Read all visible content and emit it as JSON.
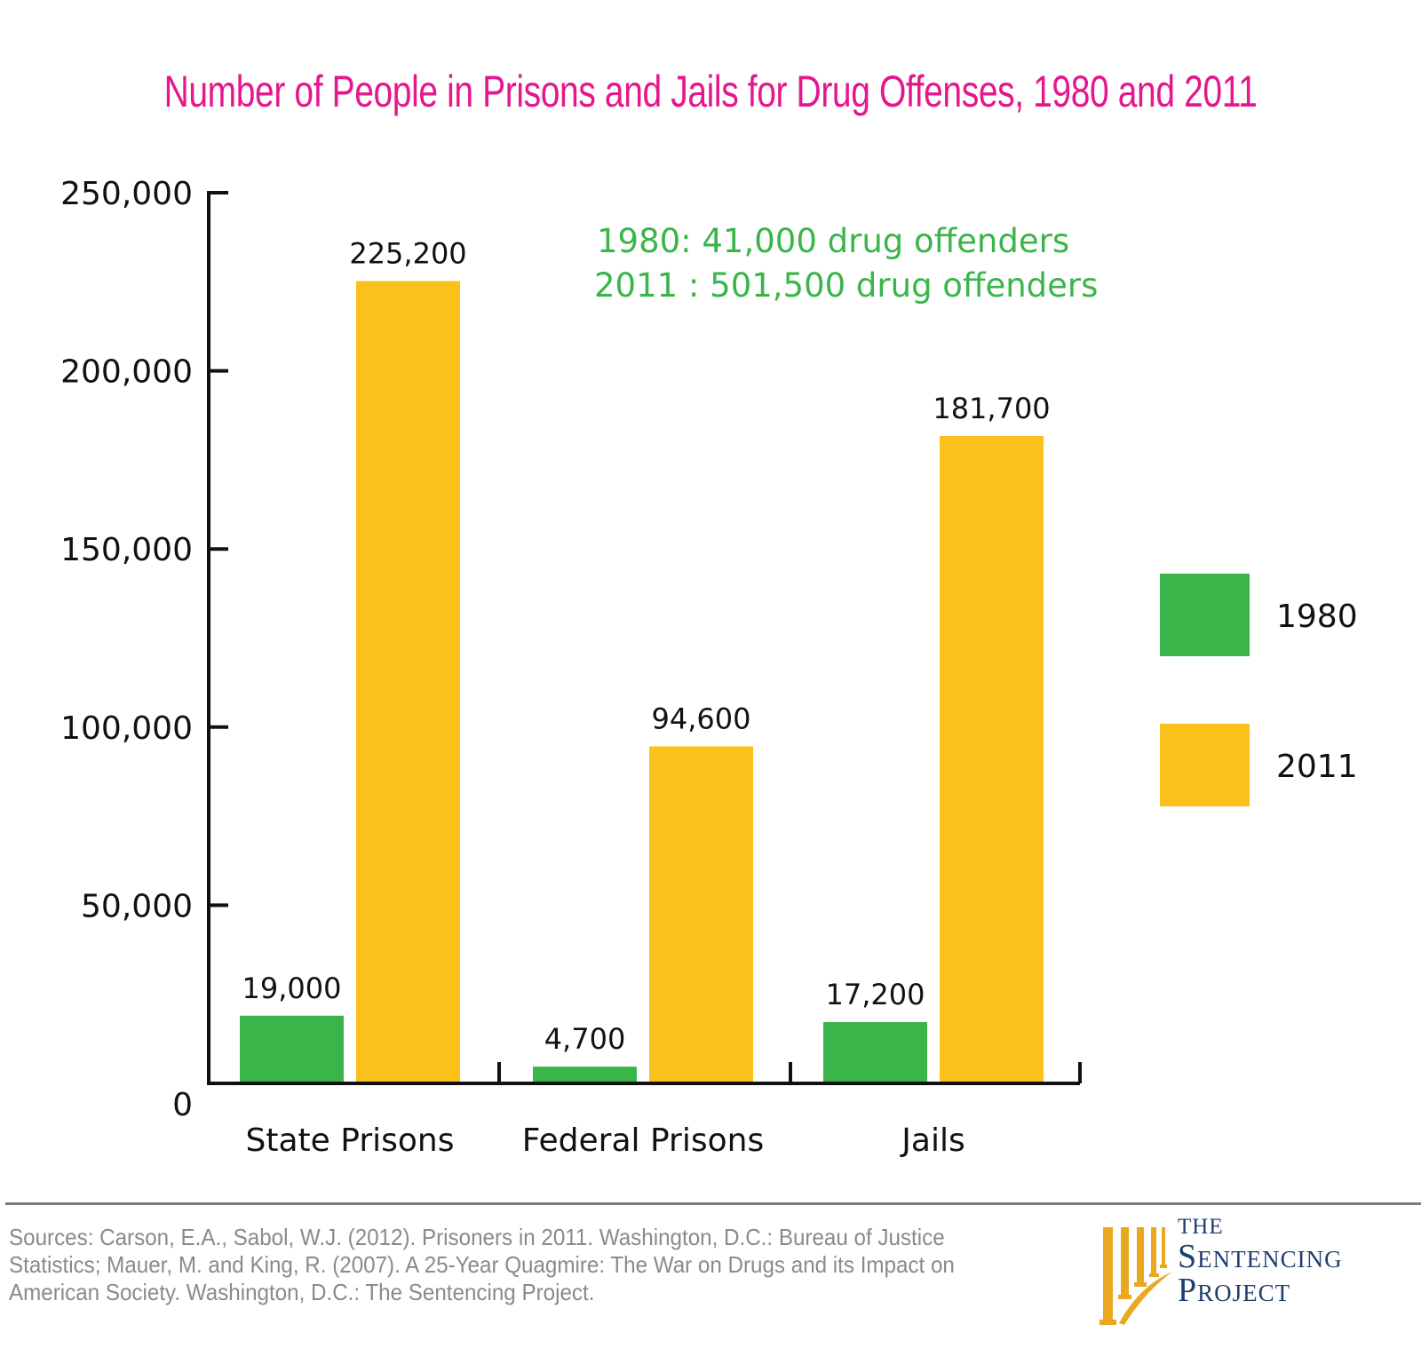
{
  "colors": {
    "title": "#e6168c",
    "series_1980": "#3ab54a",
    "series_2011": "#fbc11b",
    "annotation": "#3ab54a",
    "axis": "#111111",
    "sources_text": "#8a8a8c",
    "logo_gold": "#e9a820",
    "logo_navy": "#1d3f6e"
  },
  "chart_data": {
    "type": "bar",
    "title": "Number of People in Prisons and Jails for Drug Offenses, 1980 and 2011",
    "xlabel": "",
    "ylabel": "",
    "categories": [
      "State Prisons",
      "Federal Prisons",
      "Jails"
    ],
    "series": [
      {
        "name": "1980",
        "values": [
          19000,
          4700,
          17200
        ],
        "labels": [
          "19,000",
          "4,700",
          "17,200"
        ]
      },
      {
        "name": "2011",
        "values": [
          225200,
          94600,
          181700
        ],
        "labels": [
          "225,200",
          "94,600",
          "181,700"
        ]
      }
    ],
    "ylim": [
      0,
      250000
    ],
    "yticks": [
      0,
      50000,
      100000,
      150000,
      200000,
      250000
    ],
    "ytick_labels": [
      "0",
      "50,000",
      "100,000",
      "150,000",
      "200,000",
      "250,000"
    ],
    "grid": false,
    "legend": {
      "placement": "right",
      "entries": [
        "1980",
        "2011"
      ]
    },
    "annotations": [
      "1980: 41,000 drug offenders",
      "2011 : 501,500 drug offenders"
    ]
  },
  "footer": {
    "sources": "Sources: Carson, E.A., Sabol, W.J. (2012). Prisoners in 2011. Washington, D.C.: Bureau of Justice Statistics; Mauer, M. and King, R. (2007). A 25-Year Quagmire: The War on Drugs and its Impact on American Society. Washington, D.C.: The Sentencing Project.",
    "logo": {
      "line1": "THE",
      "line2": "Sentencing",
      "line3": "Project"
    }
  }
}
